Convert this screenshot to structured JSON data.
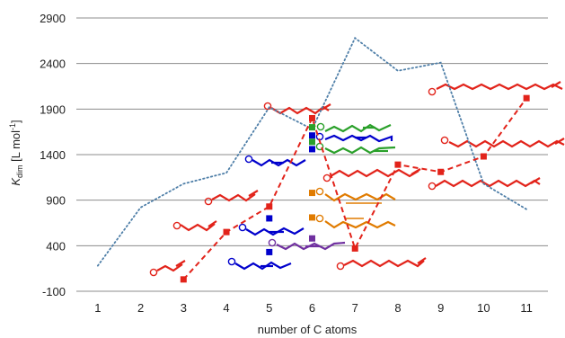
{
  "chart_data": {
    "type": "line",
    "xlabel": "number of C atoms",
    "ylabel_main": "K",
    "ylabel_sub": "dim",
    "ylabel_unit_open": " [L mol",
    "ylabel_unit_sup": "-1",
    "ylabel_unit_close": "]",
    "ylim": [
      -100,
      2900
    ],
    "xlim": [
      0.5,
      11.5
    ],
    "grid": "horizontal",
    "y_ticks": [
      2900,
      2400,
      1900,
      1400,
      900,
      400,
      -100
    ],
    "x_ticks": [
      1,
      2,
      3,
      4,
      5,
      6,
      7,
      8,
      9,
      10,
      11
    ],
    "series": [
      {
        "style": "dotted",
        "color": "#4f7fa8",
        "x": [
          1,
          2,
          3,
          4,
          5,
          6,
          7,
          8,
          9,
          10,
          11
        ],
        "y": [
          180,
          820,
          1080,
          1200,
          1920,
          1680,
          2680,
          2320,
          2410,
          1080,
          800
        ]
      },
      {
        "style": "dashed",
        "color": "#e2231a",
        "x": [
          3,
          4,
          5,
          6,
          7,
          8,
          9,
          10,
          11
        ],
        "y": [
          30,
          550,
          830,
          1800,
          370,
          1290,
          1210,
          1380,
          2020
        ]
      }
    ],
    "points_c6": [
      {
        "x": 6,
        "y": 1700,
        "color": "#2aa02a"
      },
      {
        "x": 6,
        "y": 1610,
        "color": "#0000cc"
      },
      {
        "x": 6,
        "y": 1540,
        "color": "#2aa02a"
      },
      {
        "x": 6,
        "y": 1460,
        "color": "#0000cc"
      },
      {
        "x": 6,
        "y": 980,
        "color": "#e07b00"
      },
      {
        "x": 6,
        "y": 710,
        "color": "#e07b00"
      },
      {
        "x": 6,
        "y": 480,
        "color": "#7030a0"
      }
    ],
    "points_c5": [
      {
        "x": 5,
        "y": 700,
        "color": "#0000cc"
      },
      {
        "x": 5,
        "y": 330,
        "color": "#0000cc"
      }
    ]
  }
}
